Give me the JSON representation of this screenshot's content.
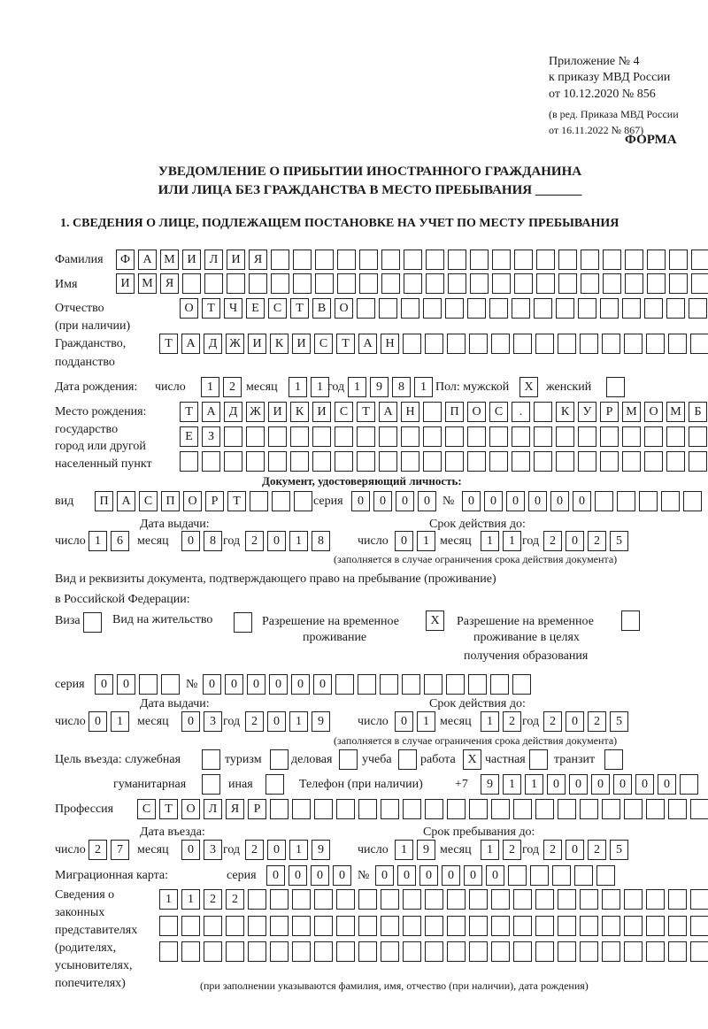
{
  "header": {
    "appendix": "Приложение № 4",
    "order": "к приказу МВД России",
    "order_date": "от 10.12.2020 № 856",
    "edition1": "(в ред. Приказа МВД России",
    "edition2": "от 16.11.2022 № 867)",
    "form": "ФОРМА",
    "title1": "УВЕДОМЛЕНИЕ О ПРИБЫТИИ ИНОСТРАННОГО ГРАЖДАНИНА",
    "title2": "ИЛИ ЛИЦА БЕЗ ГРАЖДАНСТВА В МЕСТО ПРЕБЫВАНИЯ _______",
    "section1": "1. СВЕДЕНИЯ О ЛИЦЕ, ПОДЛЕЖАЩЕМ ПОСТАНОВКЕ НА УЧЕТ ПО МЕСТУ ПРЕБЫВАНИЯ"
  },
  "labels": {
    "surname": "Фамилия",
    "name": "Имя",
    "patronymic": "Отчество",
    "patronymic2": "(при наличии)",
    "citizenship": "Гражданство,",
    "citizenship2": "подданство",
    "birth_date": "Дата рождения:",
    "day": "число",
    "month": "месяц",
    "year": "год",
    "sex": "Пол: мужской",
    "female": "женский",
    "birth_place": "Место рождения:",
    "birth_place2": "государство",
    "birth_place3": "город или другой",
    "birth_place4": "населенный пункт",
    "id_doc": "Документ, удостоверяющий личность:",
    "kind": "вид",
    "series": "серия",
    "number": "№",
    "issue_date": "Дата выдачи:",
    "valid_until": "Срок действия до:",
    "validity_note": "(заполняется в случае ограничения срока действия документа)",
    "permit_doc1": "Вид и реквизиты документа, подтверждающего право на пребывание (проживание)",
    "permit_doc2": "в Российской Федерации:",
    "visa": "Виза",
    "residence": "Вид на жительство",
    "temp1": "Разрешение на временное",
    "temp2": "проживание",
    "edu1": "Разрешение на временное",
    "edu2": "проживание в целях",
    "edu3": "получения образования",
    "purpose": "Цель въезда: служебная",
    "tourism": "туризм",
    "business": "деловая",
    "study": "учеба",
    "work": "работа",
    "private": "частная",
    "transit": "транзит",
    "humanitarian": "гуманитарная",
    "other": "иная",
    "phone": "Телефон (при наличии)",
    "phone_prefix": "+7",
    "profession": "Профессия",
    "entry_date": "Дата въезда:",
    "stay_until": "Срок пребывания до:",
    "migration_card": "Миграционная карта:",
    "reps1": "Сведения о",
    "reps2": "законных",
    "reps3": "представителях",
    "reps4": "(родителях,",
    "reps5": "усыновителях,",
    "reps6": "попечителях)",
    "reps_note": "(при заполнении указываются фамилия, имя, отчество (при наличии), дата рождения)"
  },
  "person": {
    "surname": [
      "Ф",
      "А",
      "М",
      "И",
      "Л",
      "И",
      "Я"
    ],
    "name": [
      "И",
      "М",
      "Я"
    ],
    "patronymic": [
      "О",
      "Т",
      "Ч",
      "Е",
      "С",
      "Т",
      "В",
      "О"
    ],
    "citizenship": [
      "Т",
      "А",
      "Д",
      "Ж",
      "И",
      "К",
      "И",
      "С",
      "Т",
      "А",
      "Н"
    ],
    "birth_day": [
      "1",
      "2"
    ],
    "birth_month": [
      "1",
      "1"
    ],
    "birth_year": [
      "1",
      "9",
      "8",
      "1"
    ],
    "sex_male": "X",
    "sex_female": "",
    "birth_place1": [
      "Т",
      "А",
      "Д",
      "Ж",
      "И",
      "К",
      "И",
      "С",
      "Т",
      "А",
      "Н",
      "",
      "П",
      "О",
      "С",
      ".",
      "",
      "К",
      "У",
      "Р",
      "М",
      "О",
      "М",
      "Б"
    ],
    "birth_place2": [
      "Е",
      "З"
    ],
    "birth_place3": []
  },
  "id_document": {
    "kind": [
      "П",
      "А",
      "С",
      "П",
      "О",
      "Р",
      "Т"
    ],
    "series": [
      "0",
      "0",
      "0",
      "0"
    ],
    "number": [
      "0",
      "0",
      "0",
      "0",
      "0",
      "0"
    ],
    "issue_day": [
      "1",
      "6"
    ],
    "issue_month": [
      "0",
      "8"
    ],
    "issue_year": [
      "2",
      "0",
      "1",
      "8"
    ],
    "valid_day": [
      "0",
      "1"
    ],
    "valid_month": [
      "1",
      "1"
    ],
    "valid_year": [
      "2",
      "0",
      "2",
      "5"
    ]
  },
  "permit": {
    "visa": "",
    "residence": "",
    "temporary": "X",
    "education": "",
    "series": [
      "0",
      "0"
    ],
    "number": [
      "0",
      "0",
      "0",
      "0",
      "0",
      "0"
    ],
    "issue_day": [
      "0",
      "1"
    ],
    "issue_month": [
      "0",
      "3"
    ],
    "issue_year": [
      "2",
      "0",
      "1",
      "9"
    ],
    "valid_day": [
      "0",
      "1"
    ],
    "valid_month": [
      "1",
      "2"
    ],
    "valid_year": [
      "2",
      "0",
      "2",
      "5"
    ]
  },
  "purpose": {
    "service": "",
    "tourism": "",
    "business": "",
    "study": "",
    "work": "X",
    "private": "",
    "transit": "",
    "humanitarian": "",
    "other": ""
  },
  "phone": [
    "9",
    "1",
    "1",
    "0",
    "0",
    "0",
    "0",
    "0",
    "0"
  ],
  "profession": [
    "С",
    "Т",
    "О",
    "Л",
    "Я",
    "Р"
  ],
  "entry": {
    "day": [
      "2",
      "7"
    ],
    "month": [
      "0",
      "3"
    ],
    "year": [
      "2",
      "0",
      "1",
      "9"
    ],
    "stay_day": [
      "1",
      "9"
    ],
    "stay_month": [
      "1",
      "2"
    ],
    "stay_year": [
      "2",
      "0",
      "2",
      "5"
    ]
  },
  "migration_card": {
    "series": [
      "0",
      "0",
      "0",
      "0"
    ],
    "number": [
      "0",
      "0",
      "0",
      "0",
      "0",
      "0"
    ]
  },
  "representatives": {
    "row1": [
      "1",
      "1",
      "2",
      "2"
    ],
    "row2": [],
    "row3": []
  }
}
